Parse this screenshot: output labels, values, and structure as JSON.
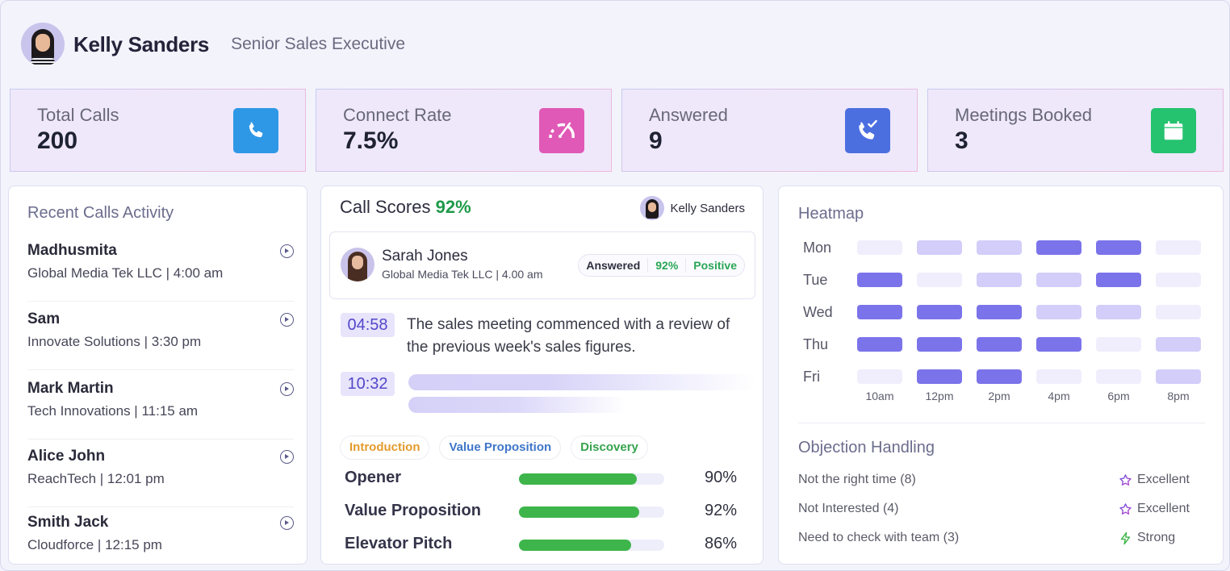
{
  "profile": {
    "name": "Kelly Sanders",
    "role": "Senior Sales Executive"
  },
  "stats": [
    {
      "label": "Total Calls",
      "value": "200",
      "icon": "phone-icon",
      "color": "#2f98e6"
    },
    {
      "label": "Connect Rate",
      "value": "7.5%",
      "icon": "speedometer-icon",
      "color": "#e059b6"
    },
    {
      "label": "Answered",
      "value": "9",
      "icon": "phone-check-icon",
      "color": "#4c6fe0"
    },
    {
      "label": "Meetings Booked",
      "value": "3",
      "icon": "calendar-icon",
      "color": "#25c270"
    }
  ],
  "recent_calls": {
    "title": "Recent Calls Activity",
    "items": [
      {
        "name": "Madhusmita",
        "meta": "Global Media Tek LLC | 4:00 am"
      },
      {
        "name": "Sam",
        "meta": "Innovate Solutions | 3:30 pm"
      },
      {
        "name": "Mark Martin",
        "meta": "Tech Innovations | 11:15 am"
      },
      {
        "name": "Alice John",
        "meta": "ReachTech | 12:01 pm"
      },
      {
        "name": "Smith Jack",
        "meta": "Cloudforce | 12:15 pm"
      }
    ]
  },
  "call_scores": {
    "title": "Call Scores",
    "score": "92%",
    "agent_name": "Kelly Sanders",
    "call": {
      "name": "Sarah Jones",
      "meta": "Global Media Tek LLC | 4.00 am",
      "status": "Answered",
      "score": "92%",
      "sentiment": "Positive"
    },
    "transcript": [
      {
        "time": "04:58",
        "text": "The sales meeting commenced with a review of the previous week's sales figures."
      },
      {
        "time": "10:32",
        "text": ""
      }
    ],
    "tags": [
      "Introduction",
      "Value Proposition",
      "Discovery"
    ],
    "metrics": [
      {
        "label": "Opener",
        "value": 90,
        "display": "90%"
      },
      {
        "label": "Value Proposition",
        "value": 92,
        "display": "92%"
      },
      {
        "label": "Elevator Pitch",
        "value": 86,
        "display": "86%"
      }
    ]
  },
  "heatmap": {
    "title": "Heatmap",
    "days": [
      "Mon",
      "Tue",
      "Wed",
      "Thu",
      "Fri"
    ],
    "times": [
      "10am",
      "12pm",
      "2pm",
      "4pm",
      "6pm",
      "8pm"
    ],
    "levels": [
      [
        0,
        1,
        1,
        2,
        2,
        0
      ],
      [
        2,
        0,
        1,
        1,
        2,
        0
      ],
      [
        2,
        2,
        2,
        1,
        1,
        0
      ],
      [
        2,
        2,
        2,
        2,
        0,
        1
      ],
      [
        0,
        2,
        2,
        0,
        0,
        1
      ]
    ],
    "colors": {
      "low": "#f0eefd",
      "mid": "#d3cdfa",
      "high": "#7b73ea"
    }
  },
  "objection_handling": {
    "title": "Objection Handling",
    "items": [
      {
        "label": "Not the right time (8)",
        "rating": "Excellent",
        "icon": "star-icon"
      },
      {
        "label": "Not Interested (4)",
        "rating": "Excellent",
        "icon": "star-icon"
      },
      {
        "label": "Need to check with team (3)",
        "rating": "Strong",
        "icon": "lightning-icon"
      }
    ]
  }
}
